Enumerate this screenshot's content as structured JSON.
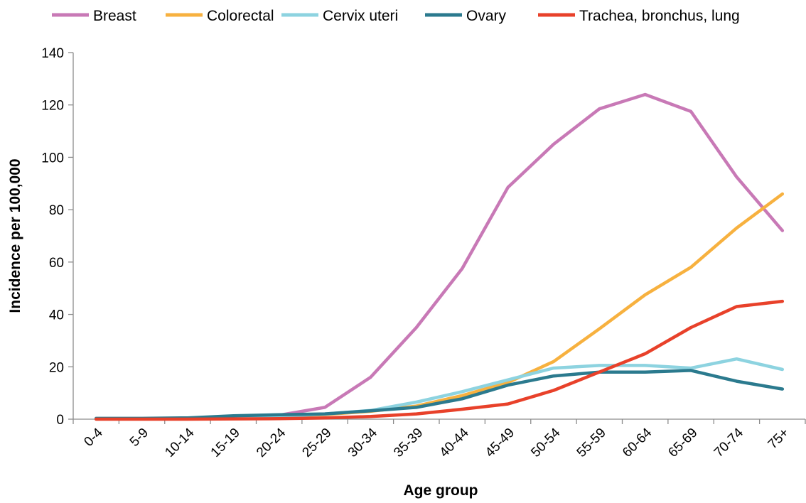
{
  "chart_data": {
    "type": "line",
    "title": "",
    "xlabel": "Age group",
    "ylabel": "Incidence per 100,000",
    "ylim": [
      0,
      140
    ],
    "yticks": [
      0,
      20,
      40,
      60,
      80,
      100,
      120,
      140
    ],
    "grid": false,
    "legend_position": "top",
    "categories": [
      "0-4",
      "5-9",
      "10-14",
      "15-19",
      "20-24",
      "25-29",
      "30-34",
      "35-39",
      "40-44",
      "45-49",
      "50-54",
      "55-59",
      "60-64",
      "65-69",
      "70-74",
      "75+"
    ],
    "series": [
      {
        "name": "Breast",
        "color": "#c879b6",
        "values": [
          0.2,
          0.2,
          0.3,
          0.8,
          1.5,
          4.5,
          16,
          35,
          57.5,
          88.5,
          105,
          118.5,
          124,
          117.5,
          92.5,
          72
        ]
      },
      {
        "name": "Colorectal",
        "color": "#f7b13f",
        "values": [
          0.1,
          0.1,
          0.2,
          0.5,
          1.0,
          1.8,
          3.0,
          5.0,
          9.0,
          14.0,
          22.0,
          34.5,
          47.5,
          58.0,
          73.0,
          86.0
        ]
      },
      {
        "name": "Cervix uteri",
        "color": "#8dd3e0",
        "values": [
          0.1,
          0.1,
          0.2,
          0.6,
          1.0,
          2.0,
          3.3,
          6.5,
          10.5,
          15.0,
          19.5,
          20.5,
          20.5,
          19.5,
          23.0,
          19.0
        ]
      },
      {
        "name": "Ovary",
        "color": "#2b7a8e",
        "values": [
          0.3,
          0.3,
          0.5,
          1.3,
          1.7,
          2.0,
          3.2,
          4.5,
          7.8,
          13.0,
          16.5,
          18.0,
          18.0,
          18.6,
          14.5,
          11.5
        ]
      },
      {
        "name": "Trachea, bronchus, lung",
        "color": "#e8412a",
        "values": [
          0.0,
          0.0,
          0.0,
          0.1,
          0.2,
          0.5,
          1.0,
          2.0,
          3.8,
          5.8,
          11.0,
          18.0,
          25.0,
          35.0,
          43.0,
          45.0
        ]
      }
    ]
  }
}
